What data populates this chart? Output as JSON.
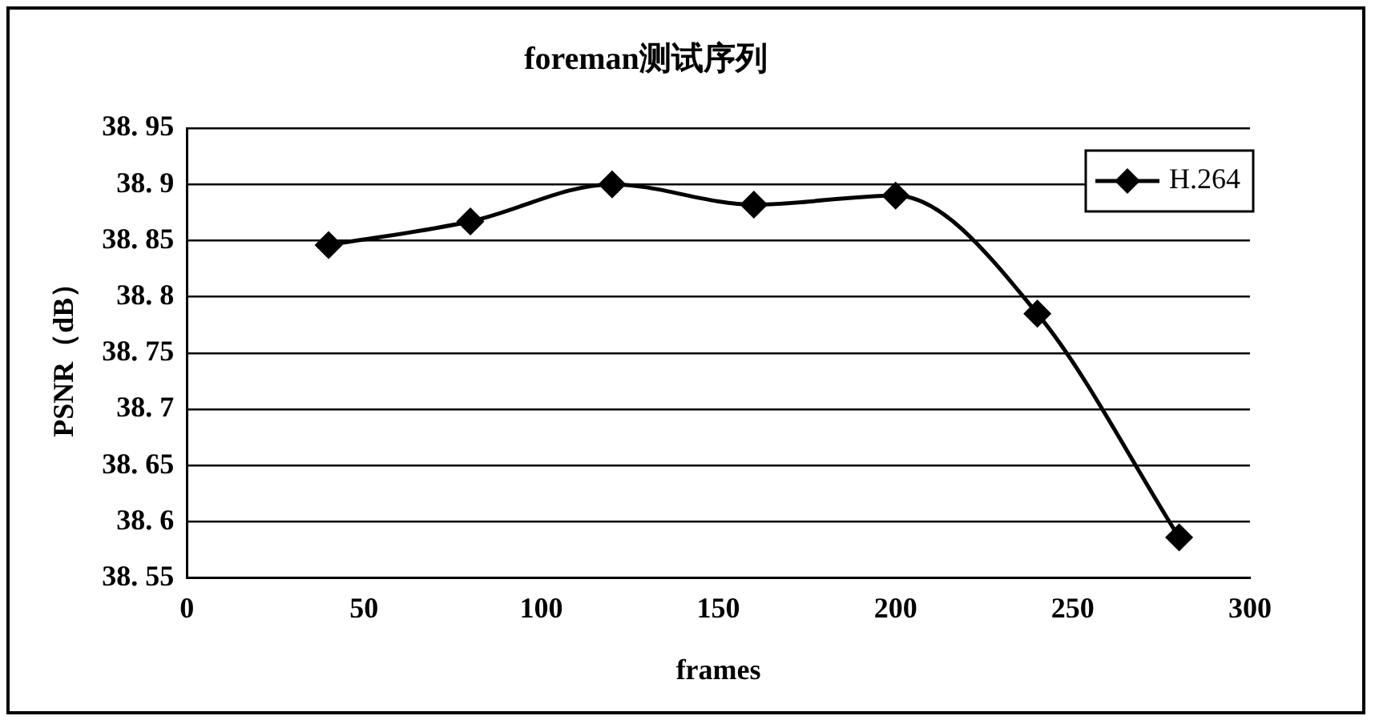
{
  "chart_data": {
    "type": "line",
    "title": "foreman测试序列",
    "xlabel": "frames",
    "ylabel": "PSNR（dB）",
    "x": [
      40,
      80,
      120,
      160,
      200,
      240,
      280
    ],
    "series": [
      {
        "name": "H.264",
        "color": "#000000",
        "values": [
          38.846,
          38.867,
          38.9,
          38.882,
          38.89,
          38.785,
          38.586
        ]
      }
    ],
    "xlim": [
      0,
      300
    ],
    "xticks": [
      0,
      50,
      100,
      150,
      200,
      250,
      300
    ],
    "ylim": [
      38.55,
      38.95
    ],
    "yticks": [
      38.55,
      38.6,
      38.65,
      38.7,
      38.75,
      38.8,
      38.85,
      38.9,
      38.95
    ],
    "grid": "y",
    "legend": "top right",
    "marker": "diamond",
    "line_style": "solid"
  }
}
